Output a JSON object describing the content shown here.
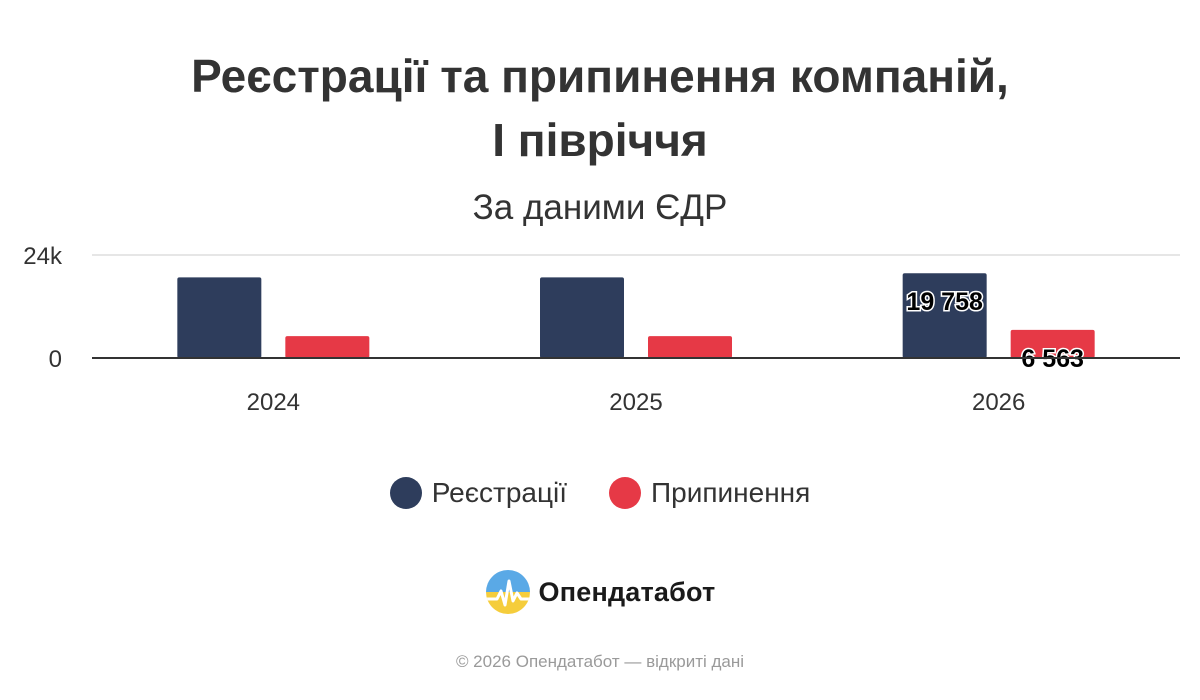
{
  "title_line1": "Реєстрації та припинення компаній,",
  "title_line2": "І півріччя",
  "subtitle": "За даними ЄДР",
  "brand": {
    "name": "Опендатабот"
  },
  "footer": "© 2026 Опендатабот — відкриті дані",
  "colors": {
    "registrations": "#2e3d5c",
    "terminations": "#e63946",
    "axis": "#333333",
    "grid": "#e6e6e6"
  },
  "chart_data": {
    "type": "bar",
    "categories": [
      "2024",
      "2025",
      "2026"
    ],
    "series": [
      {
        "name": "Реєстрації",
        "values": [
          18800,
          18800,
          19758
        ]
      },
      {
        "name": "Припинення",
        "values": [
          5100,
          5100,
          6563
        ]
      }
    ],
    "data_labels": [
      {
        "series": 0,
        "index": 2,
        "text": "19 758"
      },
      {
        "series": 1,
        "index": 2,
        "text": "6 563"
      }
    ],
    "yticks": [
      "0",
      "24k"
    ],
    "ylim": [
      0,
      24000
    ],
    "grid": true,
    "legend": "bottom-center"
  }
}
